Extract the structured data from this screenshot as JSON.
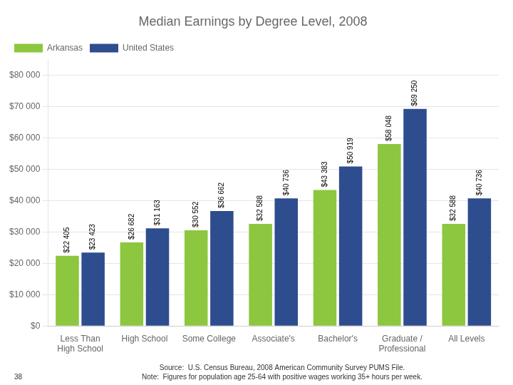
{
  "chart_data": {
    "type": "bar",
    "title": "Median Earnings by Degree Level, 2008",
    "categories": [
      "Less Than\nHigh School",
      "High School",
      "Some College",
      "Associate's",
      "Bachelor's",
      "Graduate /\nProfessional",
      "All Levels"
    ],
    "series": [
      {
        "name": "Arkansas",
        "color": "#8dc63f",
        "values": [
          22405,
          26682,
          30552,
          32588,
          43383,
          58048,
          32588
        ],
        "value_labels": [
          "$22 405",
          "$26 682",
          "$30 552",
          "$32 588",
          "$43 383",
          "$58 048",
          "$32 588"
        ]
      },
      {
        "name": "United States",
        "color": "#2e4d8e",
        "values": [
          23423,
          31163,
          36662,
          40736,
          50919,
          69250,
          40736
        ],
        "value_labels": [
          "$23 423",
          "$31 163",
          "$36 662",
          "$40 736",
          "$50 919",
          "$69 250",
          "$40 736"
        ]
      }
    ],
    "ylim": [
      0,
      85000
    ],
    "yticks": [
      {
        "value": 0,
        "label": "$0"
      },
      {
        "value": 10000,
        "label": "$10 000"
      },
      {
        "value": 20000,
        "label": "$20 000"
      },
      {
        "value": 30000,
        "label": "$30 000"
      },
      {
        "value": 40000,
        "label": "$40 000"
      },
      {
        "value": 50000,
        "label": "$50 000"
      },
      {
        "value": 60000,
        "label": "$60 000"
      },
      {
        "value": 70000,
        "label": "$70 000"
      },
      {
        "value": 80000,
        "label": "$80 000"
      }
    ],
    "grid": true,
    "legend": "upper left",
    "data_labels": true,
    "annotations": [
      "Source:  U.S. Census Bureau, 2008 American Community Survey PUMS File.\nNote:  Figures for population age 25-64 with positive wages working 35+ hours per week.",
      "38"
    ]
  }
}
